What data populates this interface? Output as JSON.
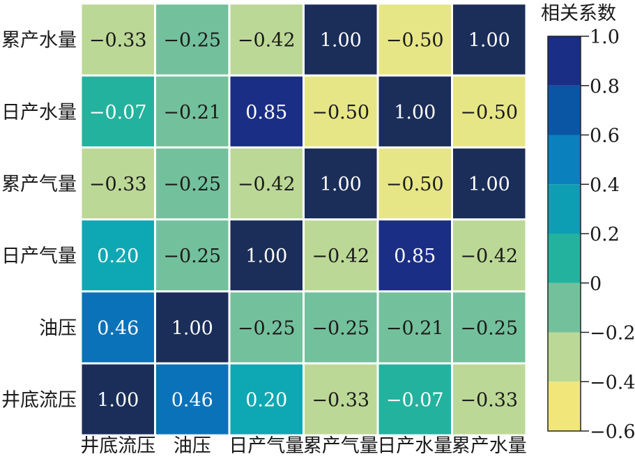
{
  "chart_data": {
    "type": "heatmap",
    "title": "",
    "xlabel": "",
    "ylabel": "",
    "x_categories": [
      "井底流压",
      "油压",
      "日产气量",
      "累产气量",
      "日产水量",
      "累产水量"
    ],
    "y_categories": [
      "累产水量",
      "日产水量",
      "累产气量",
      "日产气量",
      "油压",
      "井底流压"
    ],
    "values": [
      [
        -0.33,
        -0.25,
        -0.42,
        1.0,
        -0.5,
        1.0
      ],
      [
        -0.07,
        -0.21,
        0.85,
        -0.5,
        1.0,
        -0.5
      ],
      [
        -0.33,
        -0.25,
        -0.42,
        1.0,
        -0.5,
        1.0
      ],
      [
        0.2,
        -0.25,
        1.0,
        -0.42,
        0.85,
        -0.42
      ],
      [
        0.46,
        1.0,
        -0.25,
        -0.25,
        -0.21,
        -0.25
      ],
      [
        1.0,
        0.46,
        0.2,
        -0.33,
        -0.07,
        -0.33
      ]
    ],
    "cell_labels": [
      [
        "−0.33",
        "−0.25",
        "−0.42",
        "1.00",
        "−0.50",
        "1.00"
      ],
      [
        "−0.07",
        "−0.21",
        "0.85",
        "−0.50",
        "1.00",
        "−0.50"
      ],
      [
        "−0.33",
        "−0.25",
        "−0.42",
        "1.00",
        "−0.50",
        "1.00"
      ],
      [
        "0.20",
        "−0.25",
        "1.00",
        "−0.42",
        "0.85",
        "−0.42"
      ],
      [
        "0.46",
        "1.00",
        "−0.25",
        "−0.25",
        "−0.21",
        "−0.25"
      ],
      [
        "1.00",
        "0.46",
        "0.20",
        "−0.33",
        "−0.07",
        "−0.33"
      ]
    ],
    "colorbar": {
      "title": "相关系数",
      "range": [
        -0.6,
        1.0
      ],
      "boundaries": [
        -0.6,
        -0.4,
        -0.2,
        0.0,
        0.2,
        0.4,
        0.6,
        0.8,
        1.0
      ],
      "colors": [
        "#f0e67a",
        "#bcd896",
        "#73c19c",
        "#23b29e",
        "#0d9eb4",
        "#0a80bd",
        "#0b55a5",
        "#1b2e85"
      ],
      "tick_values": [
        1.0,
        0.8,
        0.6,
        0.4,
        0.2,
        0.0,
        -0.2,
        -0.4,
        -0.6
      ],
      "tick_labels": [
        "1.0",
        "0.8",
        "0.6",
        "0.4",
        "0.2",
        "0",
        "−0.2",
        "−0.4",
        "−0.6"
      ]
    },
    "cell_colors": [
      [
        "#bcd896",
        "#73c19c",
        "#bcd896",
        "#1b2e5a",
        "#e6e686",
        "#1b2e5a"
      ],
      [
        "#23b29e",
        "#73c19c",
        "#1b2e85",
        "#e6e686",
        "#1b2e5a",
        "#e6e686"
      ],
      [
        "#bcd896",
        "#73c19c",
        "#bcd896",
        "#1b2e5a",
        "#e6e686",
        "#1b2e5a"
      ],
      [
        "#0da8b4",
        "#73c19c",
        "#1b2e5a",
        "#bcd896",
        "#1b2e85",
        "#bcd896"
      ],
      [
        "#0a72b8",
        "#1b2e5a",
        "#73c19c",
        "#73c19c",
        "#73c19c",
        "#73c19c"
      ],
      [
        "#1b2e5a",
        "#0a72b8",
        "#0da8b4",
        "#bcd896",
        "#23b29e",
        "#bcd896"
      ]
    ],
    "grid": false,
    "legend_position": "right"
  }
}
